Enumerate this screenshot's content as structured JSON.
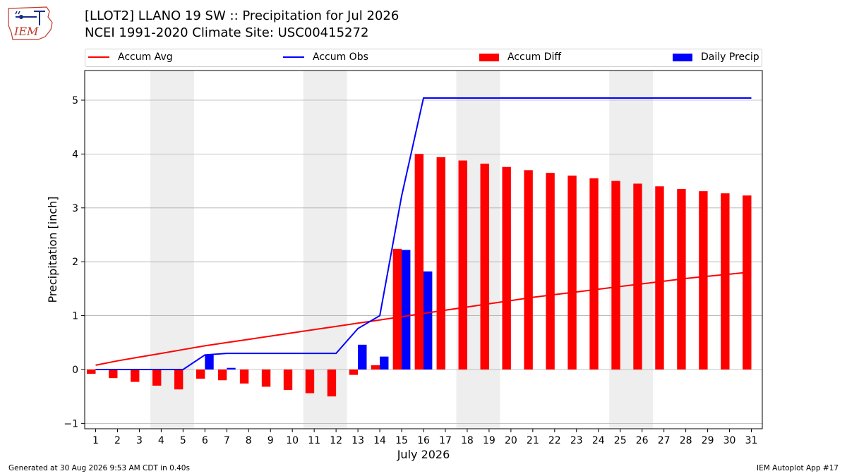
{
  "header": {
    "title_line1": "[LLOT2] LLANO 19 SW :: Precipitation for Jul 2026",
    "title_line2": "NCEI 1991-2020 Climate Site: USC00415272",
    "logo_text": "IEM"
  },
  "footer": {
    "generated": "Generated at 30 Aug 2026 9:53 AM CDT in 0.40s",
    "app": "IEM Autoplot App #17"
  },
  "colors": {
    "avg": "#ff0000",
    "obs": "#0000ff",
    "diff": "#ff0000",
    "daily": "#0000ff",
    "weekend": "#eeeeee",
    "grid": "#b0b0b0"
  },
  "chart_data": {
    "type": "bar",
    "xlabel": "July 2026",
    "ylabel": "Precipitation [inch]",
    "xlim": [
      0.5,
      31.5
    ],
    "ylim": [
      -1.1,
      5.55
    ],
    "yticks": [
      -1,
      0,
      1,
      2,
      3,
      4,
      5
    ],
    "ytick_labels": [
      "−1",
      "0",
      "1",
      "2",
      "3",
      "4",
      "5"
    ],
    "days": [
      1,
      2,
      3,
      4,
      5,
      6,
      7,
      8,
      9,
      10,
      11,
      12,
      13,
      14,
      15,
      16,
      17,
      18,
      19,
      20,
      21,
      22,
      23,
      24,
      25,
      26,
      27,
      28,
      29,
      30,
      31
    ],
    "weekend_spans": [
      [
        3.5,
        5.5
      ],
      [
        10.5,
        12.5
      ],
      [
        17.5,
        19.5
      ],
      [
        24.5,
        26.5
      ]
    ],
    "grid": true,
    "legend_position": "top",
    "series": [
      {
        "name": "Accum Avg",
        "kind": "line",
        "values": [
          0.08,
          0.16,
          0.23,
          0.3,
          0.37,
          0.44,
          0.5,
          0.56,
          0.62,
          0.68,
          0.74,
          0.8,
          0.86,
          0.92,
          0.98,
          1.04,
          1.1,
          1.16,
          1.22,
          1.28,
          1.34,
          1.39,
          1.44,
          1.49,
          1.54,
          1.59,
          1.64,
          1.69,
          1.73,
          1.77,
          1.81
        ]
      },
      {
        "name": "Accum Obs",
        "kind": "line",
        "values": [
          0.0,
          0.0,
          0.0,
          0.0,
          0.0,
          0.27,
          0.3,
          0.3,
          0.3,
          0.3,
          0.3,
          0.3,
          0.76,
          1.0,
          3.22,
          5.04,
          5.04,
          5.04,
          5.04,
          5.04,
          5.04,
          5.04,
          5.04,
          5.04,
          5.04,
          5.04,
          5.04,
          5.04,
          5.04,
          5.04,
          5.04
        ]
      },
      {
        "name": "Accum Diff",
        "kind": "bar",
        "values": [
          -0.08,
          -0.16,
          -0.23,
          -0.3,
          -0.37,
          -0.17,
          -0.2,
          -0.26,
          -0.32,
          -0.38,
          -0.44,
          -0.5,
          -0.1,
          0.08,
          2.24,
          4.0,
          3.94,
          3.88,
          3.82,
          3.76,
          3.7,
          3.65,
          3.6,
          3.55,
          3.5,
          3.45,
          3.4,
          3.35,
          3.31,
          3.27,
          3.23
        ]
      },
      {
        "name": "Daily Precip",
        "kind": "bar",
        "values": [
          0,
          0,
          0,
          0,
          0,
          0.27,
          0.03,
          0,
          0,
          0,
          0,
          0,
          0.46,
          0.24,
          2.22,
          1.82,
          0,
          0,
          0,
          0,
          0,
          0,
          0,
          0,
          0,
          0,
          0,
          0,
          0,
          0,
          0
        ]
      }
    ]
  }
}
